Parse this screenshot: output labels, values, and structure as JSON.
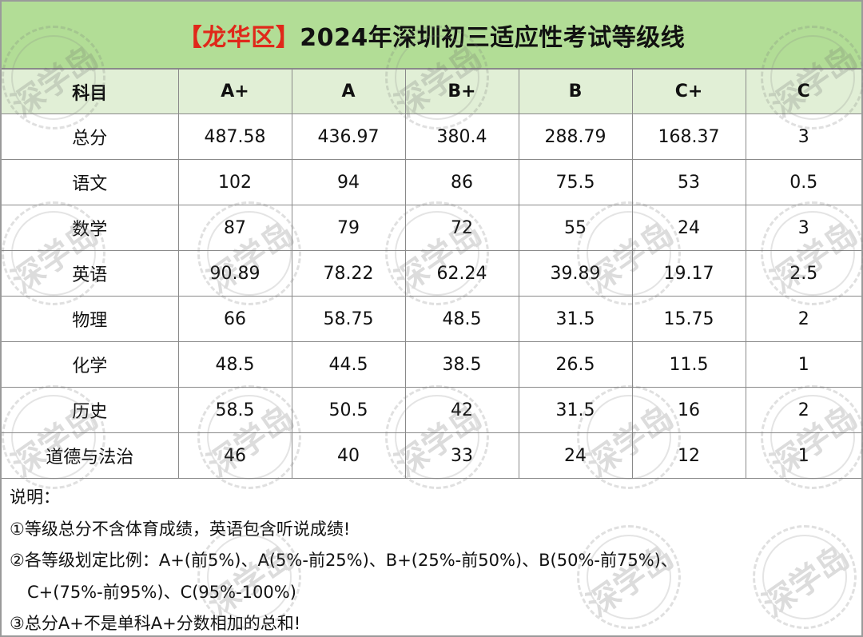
{
  "title": {
    "district": "【龙华区】",
    "main": "2024年深圳初三适应性考试等级线"
  },
  "table": {
    "headers": [
      "科目",
      "A+",
      "A",
      "B+",
      "B",
      "C+",
      "C"
    ],
    "rows": [
      [
        "总分",
        "487.58",
        "436.97",
        "380.4",
        "288.79",
        "168.37",
        "3"
      ],
      [
        "语文",
        "102",
        "94",
        "86",
        "75.5",
        "53",
        "0.5"
      ],
      [
        "数学",
        "87",
        "79",
        "72",
        "55",
        "24",
        "3"
      ],
      [
        "英语",
        "90.89",
        "78.22",
        "62.24",
        "39.89",
        "19.17",
        "2.5"
      ],
      [
        "物理",
        "66",
        "58.75",
        "48.5",
        "31.5",
        "15.75",
        "2"
      ],
      [
        "化学",
        "48.5",
        "44.5",
        "38.5",
        "26.5",
        "11.5",
        "1"
      ],
      [
        "历史",
        "58.5",
        "50.5",
        "42",
        "31.5",
        "16",
        "2"
      ],
      [
        "道德与法治",
        "46",
        "40",
        "33",
        "24",
        "12",
        "1"
      ]
    ]
  },
  "notes": {
    "heading": "说明：",
    "line1": "①等级总分不含体育成绩，英语包含听说成绩!",
    "line2": "②各等级划定比例：A+(前5%)、A(5%-前25%)、B+(25%-前50%)、B(50%-前75%)、",
    "line2b": "C+(75%-前95%)、C(95%-100%)",
    "line3": "③总分A+不是单科A+分数相加的总和!"
  },
  "watermark": {
    "text": "深学岛"
  },
  "colors": {
    "title_bg": "#b2dd96",
    "header_bg": "#e1efd6",
    "district_red": "#e0281a",
    "border": "#8a8a8a"
  }
}
